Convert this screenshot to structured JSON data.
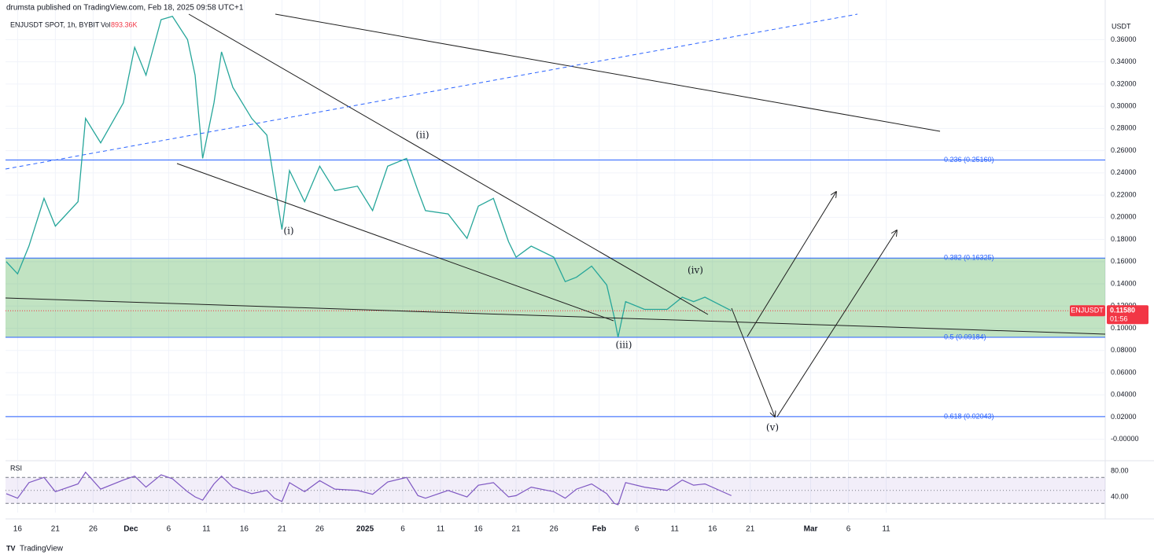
{
  "header": {
    "publisher": "drumsta published on TradingView.com, Feb 18, 2025 09:58 UTC+1",
    "symbol": "ENJUSDT SPOT, 1h, BYBIT",
    "volume_label": "Vol",
    "volume": "893.36K"
  },
  "chart_data": [
    {
      "type": "line",
      "axis_unit": "USDT",
      "x": [
        -1.5,
        0,
        1.5,
        3.5,
        5,
        8,
        9,
        11,
        14,
        15.5,
        17,
        19,
        20.5,
        22.5,
        23.5,
        24.5,
        26,
        27,
        28.5,
        31,
        33,
        34,
        35,
        36,
        38,
        40,
        42,
        45,
        47,
        49,
        51.5,
        53,
        54,
        57,
        59.5,
        61,
        63,
        65,
        66,
        68,
        71,
        72.5,
        74,
        76,
        78,
        79,
        79.5,
        80.5,
        83,
        86,
        88,
        89.5,
        91,
        94.5
      ],
      "series": [
        {
          "name": "ENJUSDT",
          "color": "#26a69a",
          "values": [
            0.16,
            0.149,
            0.174,
            0.217,
            0.192,
            0.214,
            0.289,
            0.267,
            0.303,
            0.353,
            0.328,
            0.378,
            0.381,
            0.36,
            0.328,
            0.253,
            0.303,
            0.349,
            0.317,
            0.289,
            0.274,
            0.231,
            0.189,
            0.242,
            0.214,
            0.246,
            0.224,
            0.228,
            0.206,
            0.246,
            0.253,
            0.224,
            0.206,
            0.203,
            0.181,
            0.21,
            0.217,
            0.178,
            0.164,
            0.174,
            0.164,
            0.142,
            0.146,
            0.156,
            0.139,
            0.11,
            0.092,
            0.124,
            0.117,
            0.117,
            0.128,
            0.124,
            0.128,
            0.1158
          ]
        }
      ],
      "xlim": [
        -1.6,
        144
      ],
      "xticks": [
        {
          "value": 0,
          "label": "16"
        },
        {
          "value": 5,
          "label": "21"
        },
        {
          "value": 10,
          "label": "26"
        },
        {
          "value": 15,
          "label": "Dec"
        },
        {
          "value": 20,
          "label": "6"
        },
        {
          "value": 25,
          "label": "11"
        },
        {
          "value": 30,
          "label": "16"
        },
        {
          "value": 35,
          "label": "21"
        },
        {
          "value": 40,
          "label": "26"
        },
        {
          "value": 46,
          "label": "2025"
        },
        {
          "value": 51,
          "label": "6"
        },
        {
          "value": 56,
          "label": "11"
        },
        {
          "value": 61,
          "label": "16"
        },
        {
          "value": 66,
          "label": "21"
        },
        {
          "value": 71,
          "label": "26"
        },
        {
          "value": 77,
          "label": "Feb"
        },
        {
          "value": 82,
          "label": "6"
        },
        {
          "value": 87,
          "label": "11"
        },
        {
          "value": 92,
          "label": "16"
        },
        {
          "value": 97,
          "label": "21"
        },
        {
          "value": 105,
          "label": "Mar"
        },
        {
          "value": 110,
          "label": "6"
        },
        {
          "value": 115,
          "label": "11"
        }
      ],
      "ylim": [
        -0.0186,
        0.3957
      ],
      "yticks": [
        {
          "value": 0,
          "label": "-0.00000"
        },
        {
          "value": 0.02,
          "label": "0.02000"
        },
        {
          "value": 0.04,
          "label": "0.04000"
        },
        {
          "value": 0.06,
          "label": "0.06000"
        },
        {
          "value": 0.08,
          "label": "0.08000"
        },
        {
          "value": 0.1,
          "label": "0.10000"
        },
        {
          "value": 0.12,
          "label": "0.12000"
        },
        {
          "value": 0.14,
          "label": "0.14000"
        },
        {
          "value": 0.16,
          "label": "0.16000"
        },
        {
          "value": 0.18,
          "label": "0.18000"
        },
        {
          "value": 0.2,
          "label": "0.20000"
        },
        {
          "value": 0.22,
          "label": "0.22000"
        },
        {
          "value": 0.24,
          "label": "0.24000"
        },
        {
          "value": 0.26,
          "label": "0.26000"
        },
        {
          "value": 0.28,
          "label": "0.28000"
        },
        {
          "value": 0.3,
          "label": "0.30000"
        },
        {
          "value": 0.32,
          "label": "0.32000"
        },
        {
          "value": 0.34,
          "label": "0.34000"
        },
        {
          "value": 0.36,
          "label": "0.36000"
        }
      ],
      "grid": true,
      "price_tag": {
        "value": 0.1158,
        "label": "0.11580",
        "countdown": "01:56",
        "color": "#f23645"
      },
      "fib_levels": [
        {
          "value": 0.2516,
          "label": "0.236 (0.25160)"
        },
        {
          "value": 0.16325,
          "label": "0.382 (0.16325)"
        },
        {
          "value": 0.09184,
          "label": "0.5 (0.09184)"
        },
        {
          "value": 0.02043,
          "label": "0.618 (0.02043)"
        }
      ],
      "fib_color": "#2962ff",
      "zone_color": "#4caf50",
      "annotations": [
        "(i)",
        "(ii)",
        "(iii)",
        "(iv)",
        "(v)"
      ]
    },
    {
      "type": "line",
      "title": "RSI",
      "color": "#7e57c2",
      "values": [
        45,
        38,
        62,
        70,
        48,
        60,
        78,
        52,
        66,
        72,
        55,
        74,
        68,
        48,
        40,
        35,
        60,
        72,
        55,
        45,
        50,
        38,
        33,
        62,
        48,
        65,
        52,
        50,
        44,
        63,
        70,
        42,
        38,
        50,
        40,
        58,
        62,
        40,
        42,
        55,
        48,
        38,
        52,
        60,
        45,
        30,
        28,
        62,
        55,
        50,
        66,
        58,
        60,
        42
      ],
      "ylim": [
        15.8,
        93.3
      ],
      "yticks": [
        {
          "value": 80,
          "label": "80.00"
        },
        {
          "value": 40,
          "label": "40.00"
        }
      ],
      "levels": [
        70,
        50,
        30
      ]
    }
  ],
  "footer": {
    "brand": "TradingView"
  }
}
